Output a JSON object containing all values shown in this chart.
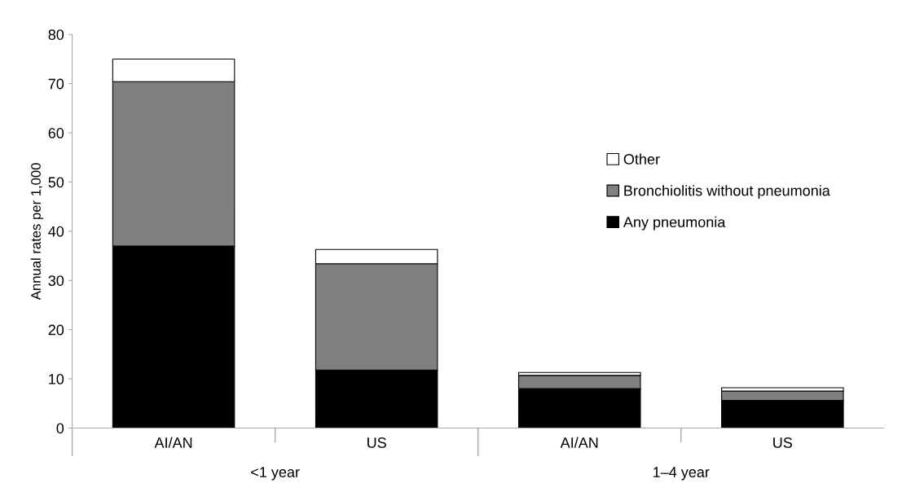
{
  "chart_data": {
    "type": "bar",
    "stacked": true,
    "ylabel": "Annual rates per 1,000",
    "categories": [
      "AI/AN",
      "US",
      "AI/AN",
      "US"
    ],
    "annotations": [
      "<1 year",
      "1–4 year"
    ],
    "series": [
      {
        "name": "Any pneumonia",
        "color": "#000000",
        "values": [
          37.0,
          11.8,
          8.0,
          5.6
        ]
      },
      {
        "name": "Bronchiolitis without pneumonia",
        "color": "#808080",
        "values": [
          33.4,
          21.6,
          2.7,
          1.9
        ]
      },
      {
        "name": "Other",
        "color": "#ffffff",
        "values": [
          4.6,
          2.9,
          0.6,
          0.7
        ]
      }
    ],
    "ylim": [
      0,
      80
    ],
    "yticks": [
      0,
      10,
      20,
      30,
      40,
      50,
      60,
      70,
      80
    ],
    "grid": false,
    "legend": "right"
  }
}
